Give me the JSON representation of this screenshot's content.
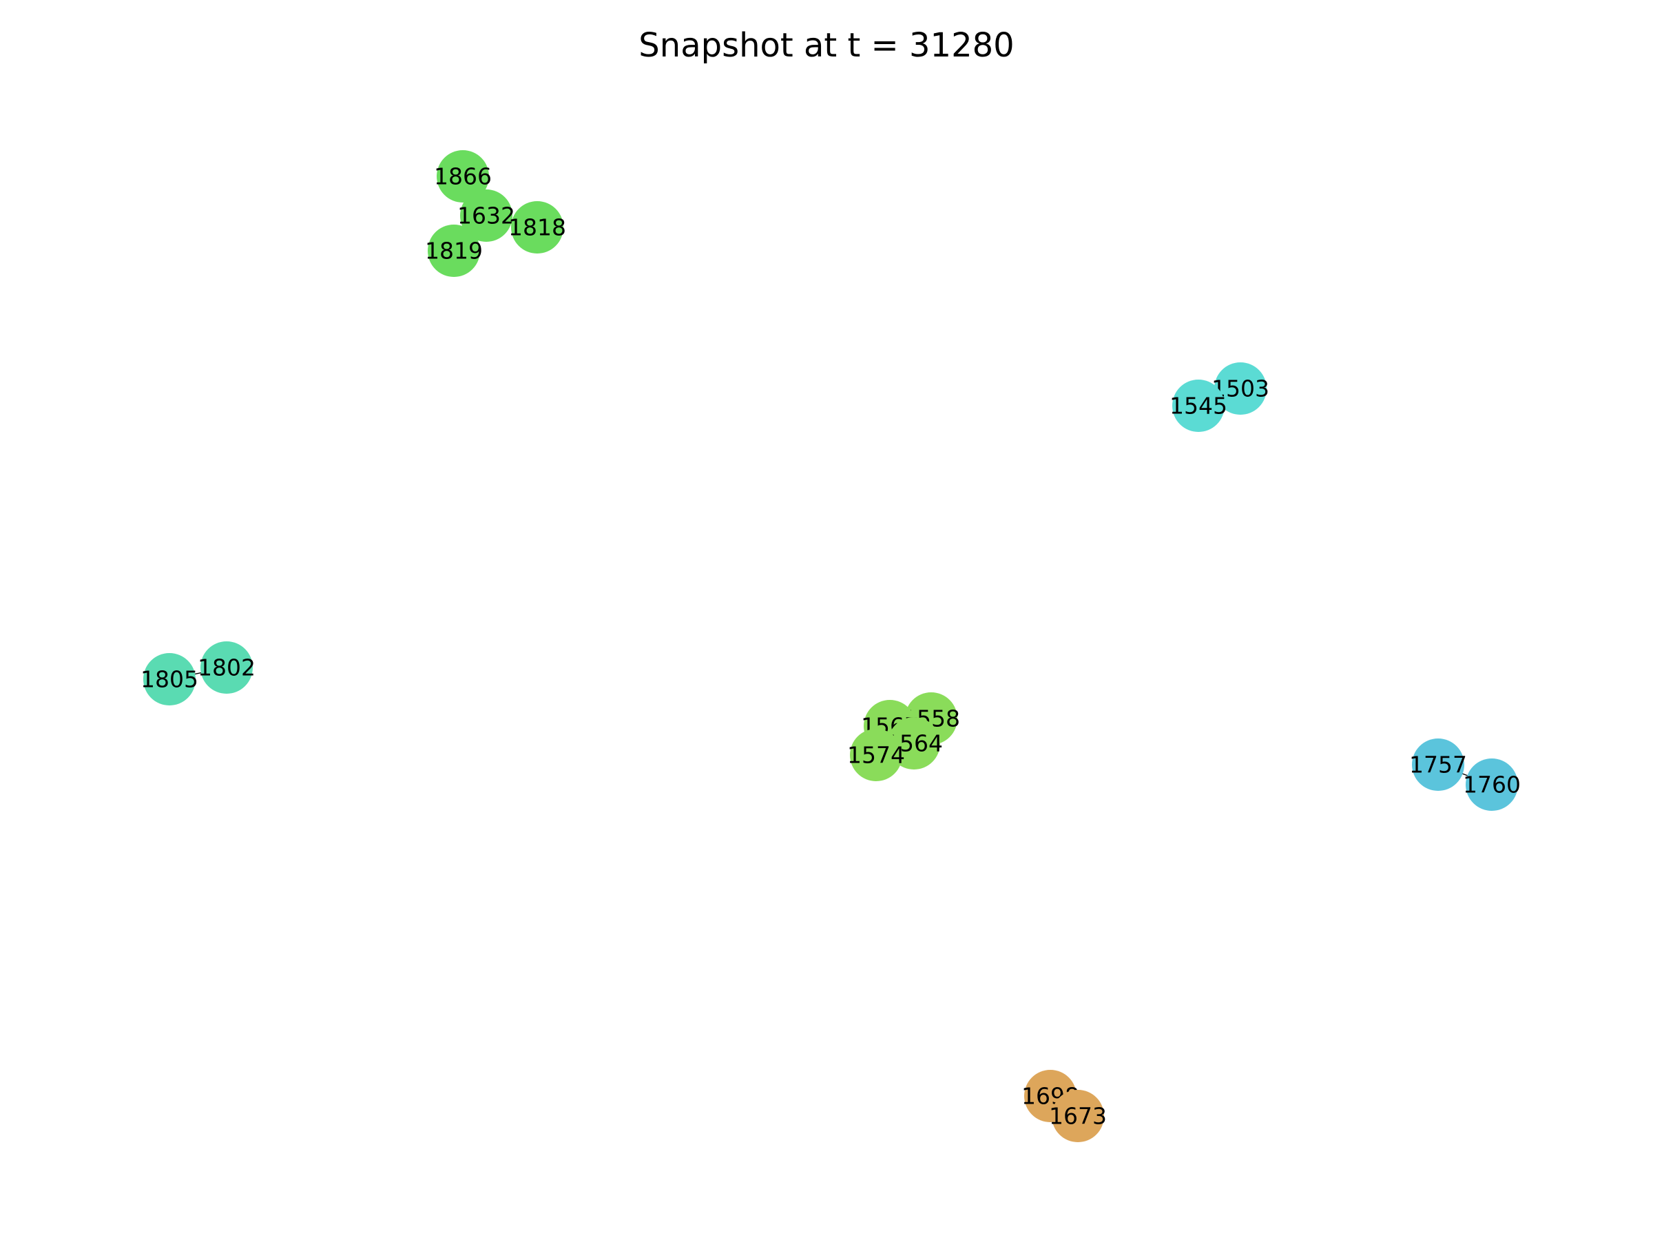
{
  "title": "Snapshot at t = 31280",
  "nodes": [
    {
      "id": "1866",
      "color": "#6ADC5E"
    },
    {
      "id": "1632",
      "color": "#6ADC5E"
    },
    {
      "id": "1818",
      "color": "#6ADC5E"
    },
    {
      "id": "1819",
      "color": "#6ADC5E"
    },
    {
      "id": "1503",
      "color": "#5BDBD4"
    },
    {
      "id": "1545",
      "color": "#5BDBD4"
    },
    {
      "id": "1802",
      "color": "#5ADBB2"
    },
    {
      "id": "1805",
      "color": "#5ADBB2"
    },
    {
      "id": "1558",
      "color": "#8ADC5A"
    },
    {
      "id": "1567",
      "color": "#8ADC5A"
    },
    {
      "id": "1564",
      "color": "#8ADC5A"
    },
    {
      "id": "1574",
      "color": "#8ADC5A"
    },
    {
      "id": "1757",
      "color": "#5BC4DC"
    },
    {
      "id": "1760",
      "color": "#5BC4DC"
    },
    {
      "id": "1698",
      "color": "#DDA65B"
    },
    {
      "id": "1673",
      "color": "#DDA65B"
    }
  ],
  "edges": [
    [
      "1866",
      "1632"
    ],
    [
      "1632",
      "1818"
    ],
    [
      "1632",
      "1819"
    ],
    [
      "1503",
      "1545"
    ],
    [
      "1802",
      "1805"
    ],
    [
      "1558",
      "1567"
    ],
    [
      "1558",
      "1564"
    ],
    [
      "1567",
      "1564"
    ],
    [
      "1567",
      "1574"
    ],
    [
      "1564",
      "1574"
    ],
    [
      "1757",
      "1760"
    ],
    [
      "1698",
      "1673"
    ]
  ]
}
